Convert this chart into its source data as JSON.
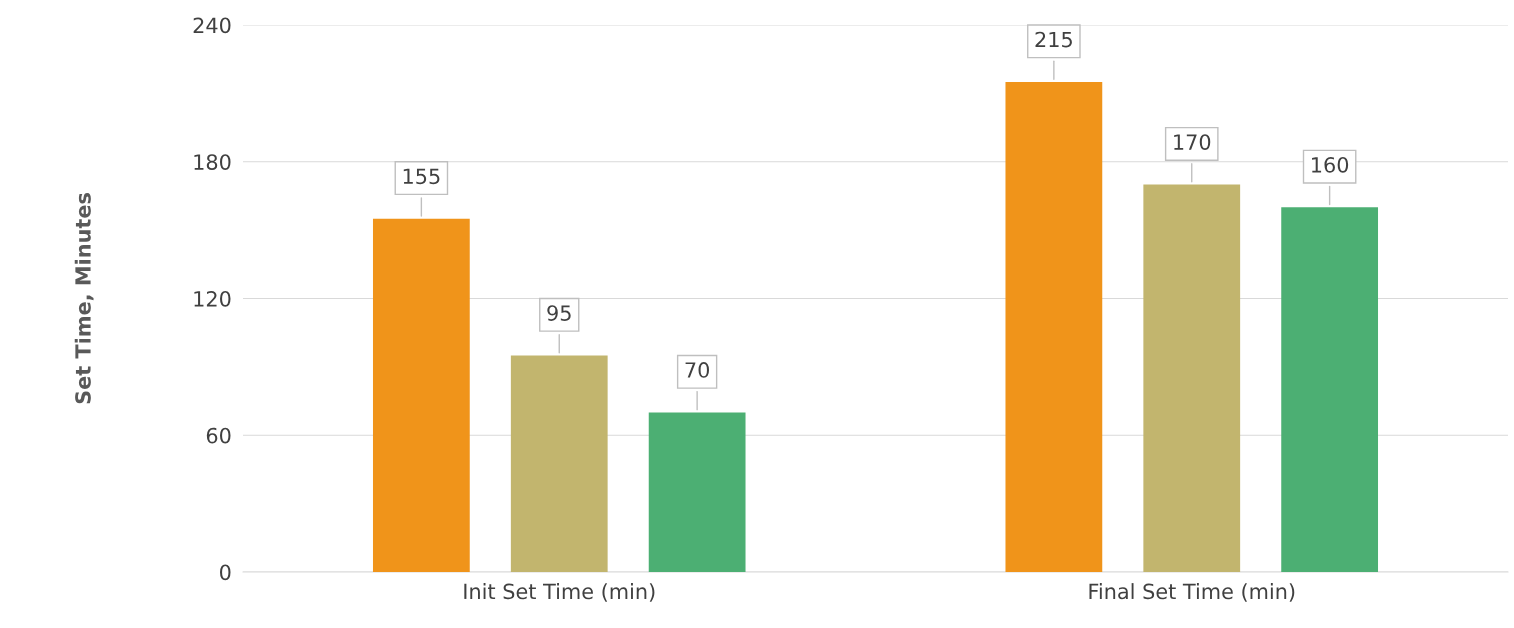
{
  "chart_data": {
    "type": "bar",
    "ylabel": "Set Time, Minutes",
    "categories": [
      "Init Set Time (min)",
      "Final Set Time (min)"
    ],
    "series": [
      {
        "color": "#f0941a",
        "values": [
          155,
          215
        ]
      },
      {
        "color": "#c2b56e",
        "values": [
          95,
          170
        ]
      },
      {
        "color": "#4caf73",
        "values": [
          70,
          160
        ]
      }
    ],
    "ylim": [
      0,
      240
    ],
    "yticks": [
      0,
      60,
      120,
      180,
      240
    ],
    "grid": "y",
    "data_labels": true,
    "legend": false
  }
}
